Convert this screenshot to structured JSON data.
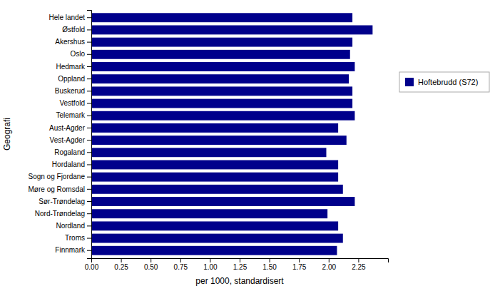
{
  "chart_data": {
    "type": "bar",
    "orientation": "horizontal",
    "categories": [
      "Hele landet",
      "Østfold",
      "Akershus",
      "Oslo",
      "Hedmark",
      "Oppland",
      "Buskerud",
      "Vestfold",
      "Telemark",
      "Aust-Agder",
      "Vest-Agder",
      "Rogaland",
      "Hordaland",
      "Sogn og Fjordane",
      "Møre og Romsdal",
      "Sør-Trøndelag",
      "Nord-Trøndelag",
      "Nordland",
      "Troms",
      "Finnmark"
    ],
    "series": [
      {
        "name": "Hoftebrudd (S72)",
        "color": "#00008B",
        "values": [
          2.2,
          2.37,
          2.2,
          2.18,
          2.22,
          2.17,
          2.2,
          2.2,
          2.22,
          2.08,
          2.15,
          1.98,
          2.08,
          2.08,
          2.12,
          2.22,
          1.99,
          2.08,
          2.12,
          2.07
        ]
      }
    ],
    "x_label": "per 1000, standardisert",
    "y_label": "Geografi",
    "xlim": [
      0,
      2.5
    ],
    "xticks": [
      {
        "value": 0.0,
        "label": "0.00"
      },
      {
        "value": 0.25,
        "label": "0.25"
      },
      {
        "value": 0.5,
        "label": "0.50"
      },
      {
        "value": 0.75,
        "label": "0.75"
      },
      {
        "value": 1.0,
        "label": "1.00"
      },
      {
        "value": 1.25,
        "label": "1.25"
      },
      {
        "value": 1.5,
        "label": "1.50"
      },
      {
        "value": 1.75,
        "label": "1.75"
      },
      {
        "value": 2.0,
        "label": "2.00"
      },
      {
        "value": 2.25,
        "label": "2.25"
      }
    ],
    "grid": false,
    "legend": "right"
  }
}
